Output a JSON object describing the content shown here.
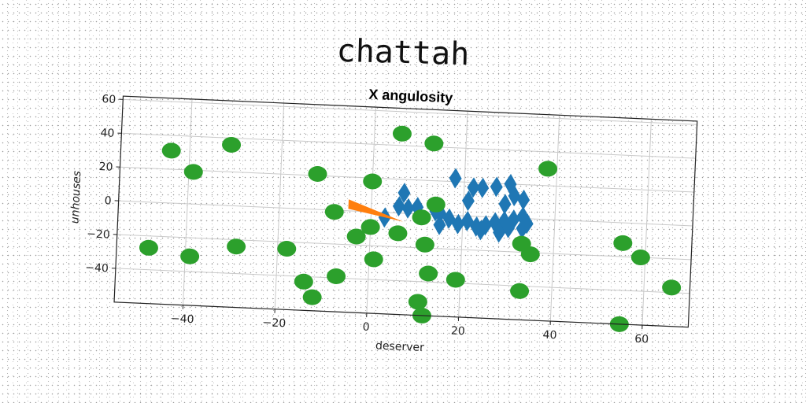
{
  "figure": {
    "suptitle": "chattah"
  },
  "chart_data": {
    "type": "scatter",
    "title": "X angulosity",
    "xlabel": "deserver",
    "ylabel": "unhouses",
    "xlim": [
      -55,
      70
    ],
    "ylim": [
      -60,
      62
    ],
    "xticks": [
      -40,
      -20,
      0,
      20,
      40,
      60
    ],
    "yticks": [
      -40,
      -20,
      0,
      20,
      40,
      60
    ],
    "grid": true,
    "colors": {
      "blue": "#1f77b4",
      "orange": "#ff7f0e",
      "green": "#2ca02c"
    },
    "series": [
      {
        "marker": "diamond",
        "color": "#1f77b4",
        "points": [
          [
            18,
            22
          ],
          [
            22,
            17
          ],
          [
            24,
            17
          ],
          [
            27,
            18
          ],
          [
            30,
            20
          ],
          [
            33,
            11
          ],
          [
            31,
            13
          ],
          [
            7,
            12
          ],
          [
            6,
            4
          ],
          [
            8,
            3
          ],
          [
            10,
            4
          ],
          [
            15,
            1
          ],
          [
            17,
            -2
          ],
          [
            19,
            -5
          ],
          [
            21,
            -3
          ],
          [
            3,
            -3
          ],
          [
            15,
            -6
          ],
          [
            23,
            -6
          ],
          [
            25,
            -5
          ],
          [
            27,
            -3
          ],
          [
            29,
            -2
          ],
          [
            31,
            -1
          ],
          [
            33,
            1
          ],
          [
            34,
            -3
          ],
          [
            33,
            -6
          ],
          [
            28,
            -9
          ],
          [
            30,
            -6
          ],
          [
            24,
            -8
          ],
          [
            21,
            9
          ],
          [
            29,
            8
          ],
          [
            14,
            2
          ]
        ]
      },
      {
        "marker": "wedge",
        "color": "#ff7f0e",
        "points": [
          [
            -5,
            4
          ],
          [
            7,
            -5
          ]
        ]
      },
      {
        "marker": "circle",
        "color": "#2ca02c",
        "points": [
          [
            -44,
            31
          ],
          [
            -31,
            36
          ],
          [
            -39,
            19
          ],
          [
            -12,
            21
          ],
          [
            0,
            18
          ],
          [
            6,
            47
          ],
          [
            13,
            42
          ],
          [
            38,
            30
          ],
          [
            14,
            6
          ],
          [
            11,
            -2
          ],
          [
            -8,
            -1
          ],
          [
            -3,
            -15
          ],
          [
            0,
            -9
          ],
          [
            6,
            -12
          ],
          [
            12,
            -18
          ],
          [
            33,
            -15
          ],
          [
            35,
            -21
          ],
          [
            55,
            -12
          ],
          [
            59,
            -20
          ],
          [
            66,
            -37
          ],
          [
            -48,
            -27
          ],
          [
            -39,
            -31
          ],
          [
            -29,
            -24
          ],
          [
            -18,
            -24
          ],
          [
            1,
            -28
          ],
          [
            -7,
            -39
          ],
          [
            -14,
            -43
          ],
          [
            -12,
            -52
          ],
          [
            13,
            -35
          ],
          [
            19,
            -38
          ],
          [
            33,
            -43
          ],
          [
            11,
            -52
          ],
          [
            12,
            -60
          ],
          [
            55,
            -60
          ]
        ]
      }
    ]
  }
}
